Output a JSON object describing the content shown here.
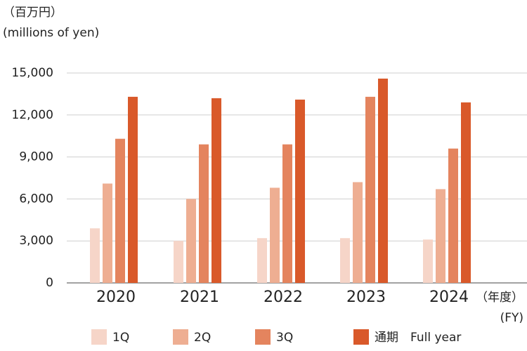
{
  "chart_data": {
    "type": "bar",
    "unit_label": "（百万円）",
    "unit_label_en": "(millions of yen)",
    "x_label": "（年度）",
    "x_label_en": "(FY)",
    "categories": [
      "2020",
      "2021",
      "2022",
      "2023",
      "2024"
    ],
    "series": [
      {
        "name": "1Q",
        "color": "#f6d5c8",
        "values": [
          3900,
          3000,
          3200,
          3200,
          3100
        ]
      },
      {
        "name": "2Q",
        "color": "#eeae92",
        "values": [
          7100,
          6000,
          6800,
          7200,
          6700
        ]
      },
      {
        "name": "3Q",
        "color": "#e4845e",
        "values": [
          10300,
          9900,
          9900,
          13300,
          9600
        ]
      },
      {
        "name": "通期　Full year",
        "color": "#d9592a",
        "values": [
          13300,
          13200,
          13100,
          14600,
          12900
        ]
      }
    ],
    "ylim": [
      0,
      15000
    ],
    "yticks": [
      0,
      {
        "value": 3000,
        "label": "3,000"
      },
      {
        "value": 6000,
        "label": "6,000"
      },
      {
        "value": 9000,
        "label": "9,000"
      },
      {
        "value": 12000,
        "label": "12,000"
      },
      {
        "value": 15000,
        "label": "15,000"
      }
    ],
    "grid": true
  }
}
